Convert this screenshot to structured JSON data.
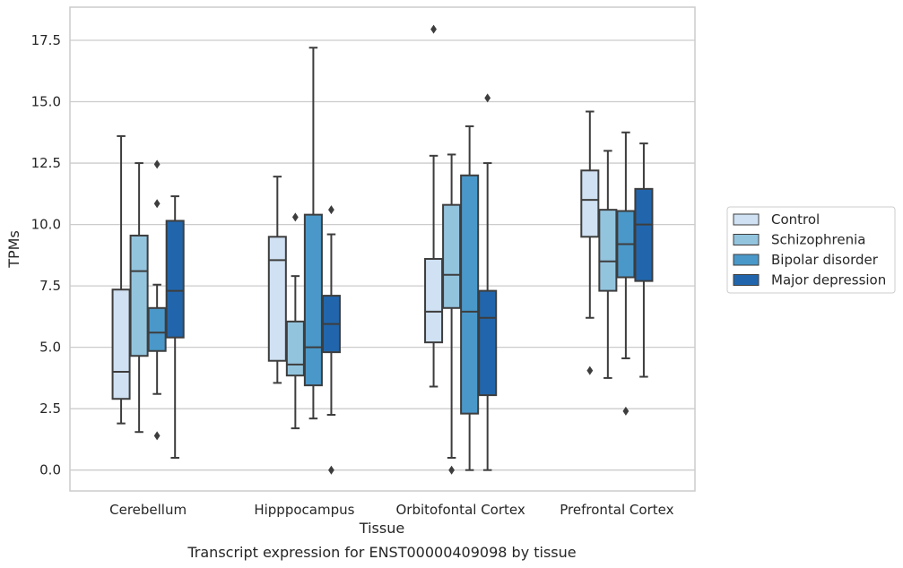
{
  "caption": "Transcript expression for ENST00000409098 by tissue",
  "chart_data": {
    "type": "box",
    "title": "",
    "xlabel": "Tissue",
    "ylabel": "TPMs",
    "categories": [
      "Cerebellum",
      "Hipppocampus",
      "Orbitofontal Cortex",
      "Prefrontal Cortex"
    ],
    "ylim": [
      -0.85,
      18.85
    ],
    "yticks": [
      "0.0",
      "2.5",
      "5.0",
      "7.5",
      "10.0",
      "12.5",
      "15.0",
      "17.5"
    ],
    "grid": true,
    "legend_position": "right",
    "series": [
      {
        "name": "Control",
        "color": "#cfe1f2",
        "boxes": [
          {
            "whislo": 1.9,
            "q1": 2.9,
            "med": 4.0,
            "q3": 7.35,
            "whishi": 13.6,
            "fliers": []
          },
          {
            "whislo": 3.55,
            "q1": 4.45,
            "med": 8.55,
            "q3": 9.5,
            "whishi": 11.95,
            "fliers": []
          },
          {
            "whislo": 3.4,
            "q1": 5.2,
            "med": 6.45,
            "q3": 8.6,
            "whishi": 12.8,
            "fliers": [
              17.95
            ]
          },
          {
            "whislo": 6.2,
            "q1": 9.5,
            "med": 11.0,
            "q3": 12.2,
            "whishi": 14.6,
            "fliers": [
              4.05
            ]
          }
        ]
      },
      {
        "name": "Schizophrenia",
        "color": "#93c4de",
        "boxes": [
          {
            "whislo": 1.55,
            "q1": 4.65,
            "med": 8.1,
            "q3": 9.55,
            "whishi": 12.5,
            "fliers": []
          },
          {
            "whislo": 1.7,
            "q1": 3.85,
            "med": 4.3,
            "q3": 6.05,
            "whishi": 7.9,
            "fliers": [
              10.3
            ]
          },
          {
            "whislo": 0.5,
            "q1": 6.6,
            "med": 7.95,
            "q3": 10.8,
            "whishi": 12.85,
            "fliers": [
              0.0
            ]
          },
          {
            "whislo": 3.75,
            "q1": 7.3,
            "med": 8.5,
            "q3": 10.6,
            "whishi": 13.0,
            "fliers": []
          }
        ]
      },
      {
        "name": "Bipolar disorder",
        "color": "#4a98c9",
        "boxes": [
          {
            "whislo": 3.1,
            "q1": 4.85,
            "med": 5.6,
            "q3": 6.6,
            "whishi": 7.55,
            "fliers": [
              12.45,
              10.85,
              1.4
            ]
          },
          {
            "whislo": 2.1,
            "q1": 3.45,
            "med": 5.0,
            "q3": 10.4,
            "whishi": 17.2,
            "fliers": []
          },
          {
            "whislo": 0.0,
            "q1": 2.3,
            "med": 6.45,
            "q3": 12.0,
            "whishi": 14.0,
            "fliers": []
          },
          {
            "whislo": 4.55,
            "q1": 7.85,
            "med": 9.2,
            "q3": 10.55,
            "whishi": 13.75,
            "fliers": [
              2.4
            ]
          }
        ]
      },
      {
        "name": "Major depression",
        "color": "#2166ac",
        "boxes": [
          {
            "whislo": 0.5,
            "q1": 5.4,
            "med": 7.3,
            "q3": 10.15,
            "whishi": 11.15,
            "fliers": []
          },
          {
            "whislo": 2.25,
            "q1": 4.8,
            "med": 5.95,
            "q3": 7.1,
            "whishi": 9.6,
            "fliers": [
              10.6,
              0.0
            ]
          },
          {
            "whislo": 0.0,
            "q1": 3.05,
            "med": 6.2,
            "q3": 7.3,
            "whishi": 12.5,
            "fliers": [
              15.15
            ]
          },
          {
            "whislo": 3.8,
            "q1": 7.7,
            "med": 10.0,
            "q3": 11.45,
            "whishi": 13.3,
            "fliers": []
          }
        ]
      }
    ]
  }
}
